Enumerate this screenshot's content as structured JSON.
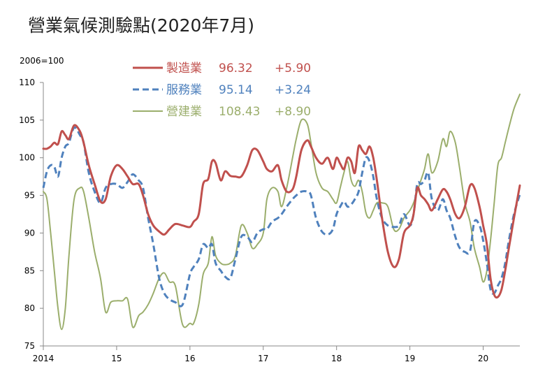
{
  "colors": {
    "manufacturing": "#c0504d",
    "services": "#4f81bd",
    "construction": "#9bae6c",
    "axis": "#888888"
  },
  "chart_data": {
    "type": "line",
    "title": "營業氣候測驗點(2020年7月)",
    "unit_label": "2006=100",
    "ylim": [
      75,
      110
    ],
    "y_ticks": [
      "75",
      "80",
      "85",
      "90",
      "95",
      "100",
      "105",
      "110"
    ],
    "xlim": [
      2014,
      2020.5
    ],
    "x_ticks": [
      {
        "value": 2014,
        "label": "2014"
      },
      {
        "value": 2015,
        "label": "15"
      },
      {
        "value": 2016,
        "label": "16"
      },
      {
        "value": 2017,
        "label": "17"
      },
      {
        "value": 2018,
        "label": "18"
      },
      {
        "value": 2019,
        "label": "19"
      },
      {
        "value": 2020,
        "label": "20"
      }
    ],
    "grid": false,
    "legend_placement": "top-center",
    "series": [
      {
        "key": "manufacturing",
        "name": "製造業",
        "latest": "96.32",
        "change": "+5.90",
        "dash": "solid",
        "x": [
          2014.0,
          2014.05,
          2014.1,
          2014.15,
          2014.2,
          2014.25,
          2014.3,
          2014.35,
          2014.42,
          2014.5,
          2014.55,
          2014.62,
          2014.7,
          2014.78,
          2014.85,
          2014.92,
          2015.0,
          2015.08,
          2015.15,
          2015.22,
          2015.3,
          2015.36,
          2015.43,
          2015.5,
          2015.58,
          2015.65,
          2015.72,
          2015.8,
          2015.9,
          2016.0,
          2016.05,
          2016.12,
          2016.18,
          2016.25,
          2016.3,
          2016.35,
          2016.42,
          2016.48,
          2016.55,
          2016.62,
          2016.7,
          2016.78,
          2016.85,
          2016.92,
          2017.0,
          2017.05,
          2017.12,
          2017.2,
          2017.25,
          2017.32,
          2017.4,
          2017.45,
          2017.52,
          2017.6,
          2017.65,
          2017.72,
          2017.8,
          2017.88,
          2017.95,
          2018.0,
          2018.05,
          2018.1,
          2018.15,
          2018.2,
          2018.25,
          2018.3,
          2018.35,
          2018.4,
          2018.45,
          2018.5,
          2018.55,
          2018.62,
          2018.7,
          2018.78,
          2018.85,
          2018.92,
          2019.0,
          2019.05,
          2019.1,
          2019.15,
          2019.2,
          2019.25,
          2019.3,
          2019.38,
          2019.45,
          2019.5,
          2019.55,
          2019.62,
          2019.68,
          2019.75,
          2019.82,
          2019.88,
          2019.95,
          2020.0,
          2020.05,
          2020.1,
          2020.15,
          2020.2,
          2020.25,
          2020.3,
          2020.35,
          2020.42,
          2020.5
        ],
        "y": [
          101.2,
          101.2,
          101.5,
          102.0,
          101.8,
          103.5,
          103.0,
          102.5,
          104.3,
          103.5,
          102.0,
          99.0,
          96.5,
          94.2,
          94.5,
          97.5,
          99.0,
          98.5,
          97.5,
          96.5,
          96.5,
          95.0,
          92.5,
          91.0,
          90.2,
          89.8,
          90.5,
          91.2,
          91.0,
          90.8,
          91.5,
          92.5,
          96.5,
          97.2,
          99.5,
          99.3,
          97.0,
          98.2,
          97.6,
          97.5,
          97.5,
          99.0,
          101.0,
          101.0,
          99.5,
          98.5,
          98.2,
          99.0,
          97.0,
          95.5,
          95.8,
          97.5,
          101.0,
          102.3,
          101.5,
          100.0,
          99.2,
          100.0,
          98.5,
          100.0,
          99.2,
          98.5,
          100.0,
          99.5,
          98.0,
          101.5,
          101.0,
          100.5,
          101.5,
          100.0,
          97.0,
          92.0,
          87.5,
          85.5,
          86.5,
          90.0,
          91.0,
          92.5,
          96.0,
          95.0,
          94.5,
          93.8,
          93.0,
          94.5,
          95.8,
          95.5,
          94.5,
          92.5,
          92.0,
          93.5,
          96.3,
          96.0,
          93.5,
          91.0,
          88.5,
          84.0,
          81.8,
          81.5,
          82.5,
          85.0,
          88.0,
          92.0,
          96.32
        ]
      },
      {
        "key": "services",
        "name": "服務業",
        "latest": "95.14",
        "change": "+3.24",
        "dash": "dashed",
        "x": [
          2014.0,
          2014.05,
          2014.1,
          2014.15,
          2014.2,
          2014.25,
          2014.3,
          2014.35,
          2014.42,
          2014.5,
          2014.55,
          2014.62,
          2014.7,
          2014.78,
          2014.85,
          2014.92,
          2015.0,
          2015.08,
          2015.15,
          2015.22,
          2015.3,
          2015.36,
          2015.43,
          2015.5,
          2015.58,
          2015.65,
          2015.72,
          2015.8,
          2015.9,
          2016.0,
          2016.05,
          2016.12,
          2016.18,
          2016.25,
          2016.3,
          2016.35,
          2016.42,
          2016.48,
          2016.55,
          2016.62,
          2016.7,
          2016.78,
          2016.85,
          2016.92,
          2017.0,
          2017.05,
          2017.12,
          2017.2,
          2017.25,
          2017.32,
          2017.4,
          2017.45,
          2017.52,
          2017.6,
          2017.65,
          2017.72,
          2017.8,
          2017.88,
          2017.95,
          2018.0,
          2018.05,
          2018.1,
          2018.15,
          2018.2,
          2018.25,
          2018.3,
          2018.35,
          2018.4,
          2018.45,
          2018.5,
          2018.55,
          2018.62,
          2018.7,
          2018.78,
          2018.85,
          2018.92,
          2019.0,
          2019.05,
          2019.1,
          2019.15,
          2019.2,
          2019.25,
          2019.3,
          2019.38,
          2019.45,
          2019.5,
          2019.55,
          2019.62,
          2019.68,
          2019.75,
          2019.82,
          2019.88,
          2019.95,
          2020.0,
          2020.05,
          2020.1,
          2020.15,
          2020.2,
          2020.25,
          2020.3,
          2020.35,
          2020.42,
          2020.5
        ],
        "y": [
          96.0,
          98.2,
          99.0,
          98.8,
          97.5,
          100.0,
          101.5,
          102.0,
          104.0,
          103.0,
          102.0,
          98.0,
          95.5,
          94.0,
          96.0,
          96.5,
          96.5,
          96.0,
          96.8,
          97.8,
          97.0,
          96.0,
          92.0,
          88.5,
          84.0,
          82.0,
          81.2,
          80.8,
          80.5,
          84.5,
          85.5,
          86.5,
          88.5,
          88.0,
          88.5,
          86.0,
          85.0,
          84.2,
          84.0,
          86.5,
          89.5,
          89.5,
          88.8,
          90.0,
          90.5,
          90.5,
          91.5,
          92.0,
          92.5,
          93.5,
          94.5,
          95.0,
          95.5,
          95.5,
          95.0,
          92.0,
          90.2,
          89.8,
          90.5,
          92.5,
          93.5,
          94.2,
          93.5,
          93.8,
          94.5,
          95.5,
          98.0,
          100.0,
          99.5,
          97.5,
          94.5,
          92.0,
          91.0,
          90.8,
          91.0,
          92.5,
          91.0,
          92.5,
          96.5,
          96.5,
          97.0,
          98.0,
          94.5,
          93.0,
          94.5,
          93.0,
          92.0,
          89.5,
          88.0,
          87.5,
          87.6,
          91.5,
          91.0,
          89.0,
          86.0,
          82.5,
          82.0,
          83.0,
          84.0,
          86.0,
          89.0,
          92.5,
          95.14
        ]
      },
      {
        "key": "construction",
        "name": "營建業",
        "latest": "108.43",
        "change": "+8.90",
        "dash": "solid",
        "x": [
          2014.0,
          2014.05,
          2014.1,
          2014.15,
          2014.2,
          2014.25,
          2014.3,
          2014.35,
          2014.42,
          2014.5,
          2014.55,
          2014.62,
          2014.7,
          2014.78,
          2014.85,
          2014.92,
          2015.0,
          2015.08,
          2015.15,
          2015.22,
          2015.3,
          2015.36,
          2015.43,
          2015.5,
          2015.58,
          2015.65,
          2015.72,
          2015.8,
          2015.9,
          2016.0,
          2016.05,
          2016.12,
          2016.18,
          2016.25,
          2016.3,
          2016.35,
          2016.42,
          2016.48,
          2016.55,
          2016.62,
          2016.7,
          2016.78,
          2016.85,
          2016.92,
          2017.0,
          2017.05,
          2017.12,
          2017.2,
          2017.25,
          2017.32,
          2017.4,
          2017.45,
          2017.52,
          2017.6,
          2017.65,
          2017.72,
          2017.8,
          2017.88,
          2017.95,
          2018.0,
          2018.05,
          2018.1,
          2018.15,
          2018.2,
          2018.25,
          2018.3,
          2018.35,
          2018.4,
          2018.45,
          2018.5,
          2018.55,
          2018.62,
          2018.7,
          2018.78,
          2018.85,
          2018.92,
          2019.0,
          2019.05,
          2019.1,
          2019.15,
          2019.2,
          2019.25,
          2019.3,
          2019.38,
          2019.45,
          2019.5,
          2019.55,
          2019.62,
          2019.68,
          2019.75,
          2019.82,
          2019.88,
          2019.95,
          2020.0,
          2020.05,
          2020.1,
          2020.15,
          2020.2,
          2020.25,
          2020.3,
          2020.35,
          2020.42,
          2020.5
        ],
        "y": [
          95.5,
          94.5,
          90.0,
          85.0,
          80.0,
          77.2,
          80.0,
          87.0,
          94.5,
          96.0,
          95.5,
          92.0,
          87.5,
          84.0,
          79.5,
          80.8,
          81.0,
          81.0,
          81.2,
          77.5,
          79.0,
          79.5,
          80.5,
          82.0,
          84.0,
          84.7,
          83.5,
          83.0,
          77.8,
          78.0,
          78.0,
          80.5,
          84.5,
          86.0,
          89.5,
          87.0,
          86.0,
          85.8,
          86.0,
          87.0,
          91.0,
          90.0,
          88.0,
          88.5,
          90.0,
          94.5,
          96.0,
          95.5,
          93.5,
          96.0,
          100.0,
          102.5,
          105.0,
          104.5,
          102.0,
          98.0,
          96.0,
          95.5,
          94.5,
          94.0,
          96.0,
          98.0,
          99.5,
          97.0,
          96.2,
          97.0,
          95.5,
          92.7,
          92.0,
          93.0,
          94.0,
          94.0,
          93.5,
          90.5,
          90.5,
          92.0,
          93.0,
          94.0,
          95.5,
          97.0,
          98.5,
          100.5,
          98.0,
          99.5,
          102.5,
          101.5,
          103.5,
          102.0,
          98.5,
          94.0,
          91.5,
          88.0,
          85.5,
          83.5,
          85.0,
          89.0,
          94.0,
          99.0,
          100.0,
          102.0,
          104.0,
          106.5,
          108.43
        ]
      }
    ]
  }
}
